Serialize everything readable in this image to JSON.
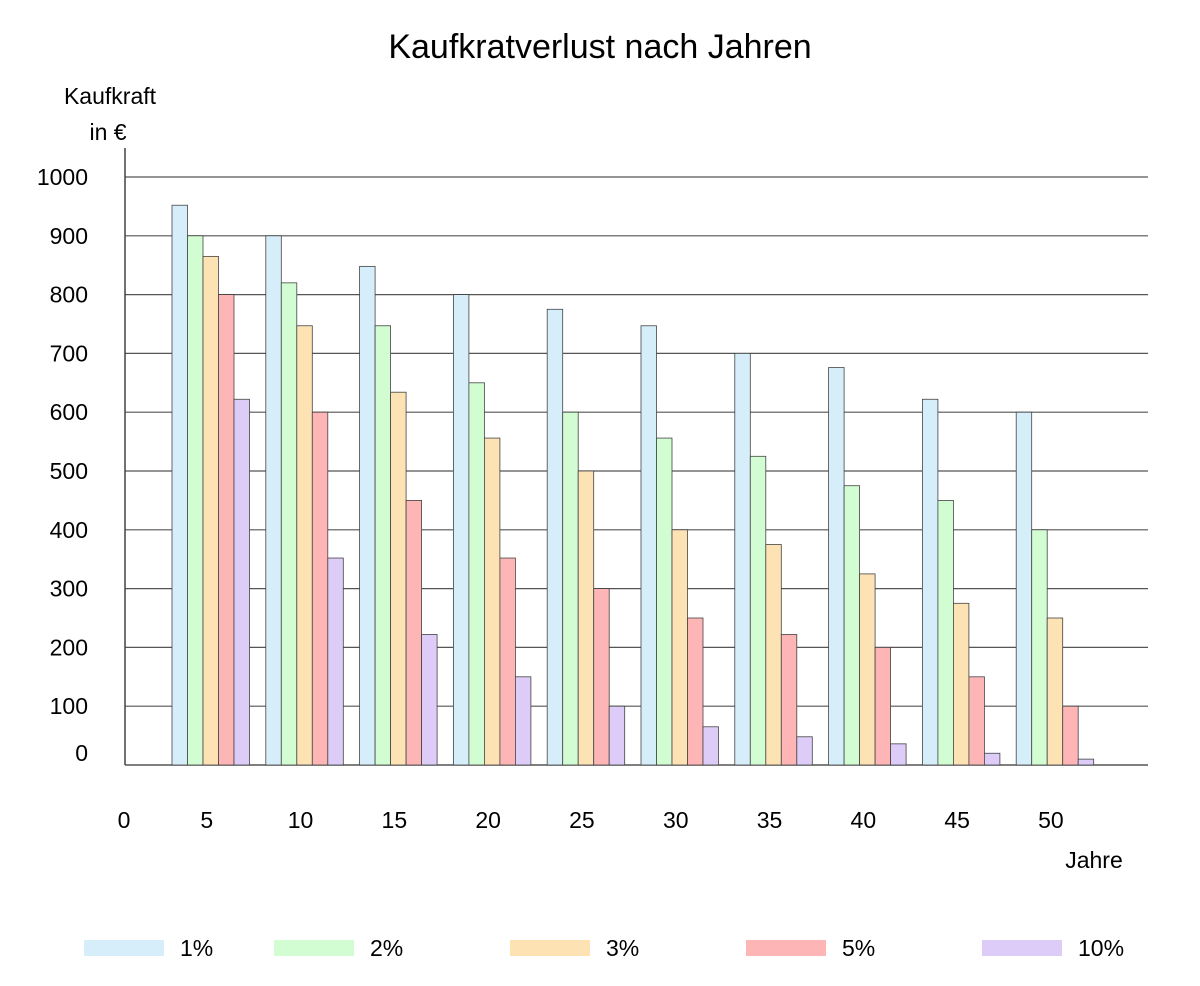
{
  "chart_data": {
    "type": "bar",
    "title": "Kaufkratverlust nach Jahren",
    "ylabel_line1": "Kaufkraft",
    "ylabel_line2": "in €",
    "xlabel": "Jahre",
    "ylim": [
      0,
      1000
    ],
    "y_ticks": [
      0,
      100,
      200,
      300,
      400,
      500,
      600,
      700,
      800,
      900,
      1000
    ],
    "x_origin_label": "0",
    "categories": [
      "5",
      "10",
      "15",
      "20",
      "25",
      "30",
      "35",
      "40",
      "45",
      "50"
    ],
    "grid": true,
    "legend_position": "bottom",
    "series": [
      {
        "name": "1%",
        "color": "#d6eefa",
        "values": [
          952,
          900,
          848,
          800,
          775,
          747,
          700,
          676,
          622,
          600
        ]
      },
      {
        "name": "2%",
        "color": "#d2fcd2",
        "values": [
          900,
          820,
          747,
          650,
          600,
          556,
          525,
          475,
          450,
          400
        ]
      },
      {
        "name": "3%",
        "color": "#fde2b4",
        "values": [
          865,
          747,
          634,
          556,
          500,
          400,
          375,
          325,
          275,
          250
        ]
      },
      {
        "name": "5%",
        "color": "#fdb5b5",
        "values": [
          800,
          600,
          450,
          352,
          300,
          250,
          222,
          200,
          150,
          100
        ]
      },
      {
        "name": "10%",
        "color": "#dcccf7",
        "values": [
          622,
          352,
          222,
          150,
          100,
          65,
          48,
          36,
          20,
          10
        ]
      }
    ]
  }
}
